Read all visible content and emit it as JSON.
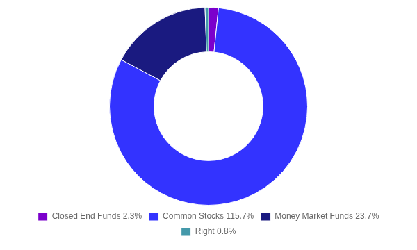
{
  "chart_data": {
    "type": "doughnut",
    "categories": [
      "Closed End Funds 2.3%",
      "Common Stocks 115.7%",
      "Money Market Funds 23.7%",
      "Right 0.8%"
    ],
    "values": [
      2.3,
      115.7,
      23.7,
      0.8
    ],
    "colors": [
      "#7B00CC",
      "#3333FF",
      "#1a1a80",
      "#4499AA"
    ],
    "legend": "bottom"
  }
}
